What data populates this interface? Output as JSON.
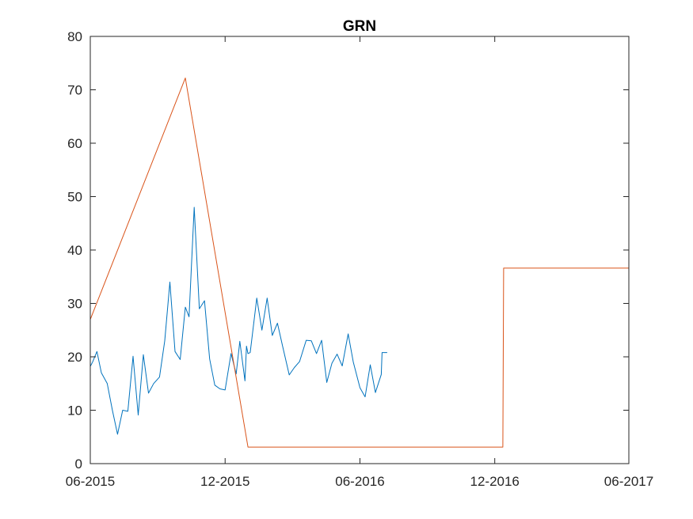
{
  "chart_data": {
    "type": "line",
    "title": "GRN",
    "xlabel": "",
    "ylabel": "",
    "xlim": [
      "2015-06-01",
      "2017-06-01"
    ],
    "ylim": [
      0,
      80
    ],
    "grid": false,
    "legend": "none",
    "x_ticks": [
      {
        "date": "2015-06-01",
        "label": "06-2015"
      },
      {
        "date": "2015-12-01",
        "label": "12-2015"
      },
      {
        "date": "2016-06-01",
        "label": "06-2016"
      },
      {
        "date": "2016-12-01",
        "label": "12-2016"
      },
      {
        "date": "2017-06-01",
        "label": "06-2017"
      }
    ],
    "y_ticks": [
      0,
      10,
      20,
      30,
      40,
      50,
      60,
      70,
      80
    ],
    "series": [
      {
        "color": "#0072BD",
        "points": [
          [
            "2015-06-01",
            18.2
          ],
          [
            "2015-06-04",
            19.0
          ],
          [
            "2015-06-10",
            21.0
          ],
          [
            "2015-06-16",
            17.0
          ],
          [
            "2015-06-24",
            15.0
          ],
          [
            "2015-07-01",
            10.0
          ],
          [
            "2015-07-08",
            5.5
          ],
          [
            "2015-07-15",
            10.0
          ],
          [
            "2015-07-22",
            9.8
          ],
          [
            "2015-07-29",
            20.1
          ],
          [
            "2015-08-05",
            9.1
          ],
          [
            "2015-08-12",
            20.4
          ],
          [
            "2015-08-19",
            13.2
          ],
          [
            "2015-08-26",
            15.0
          ],
          [
            "2015-09-03",
            16.2
          ],
          [
            "2015-09-10",
            23.0
          ],
          [
            "2015-09-17",
            34.0
          ],
          [
            "2015-09-24",
            21.0
          ],
          [
            "2015-10-01",
            19.5
          ],
          [
            "2015-10-08",
            29.3
          ],
          [
            "2015-10-13",
            27.5
          ],
          [
            "2015-10-20",
            48.0
          ],
          [
            "2015-10-27",
            29.0
          ],
          [
            "2015-11-03",
            30.5
          ],
          [
            "2015-11-10",
            19.6
          ],
          [
            "2015-11-17",
            14.7
          ],
          [
            "2015-11-24",
            14.0
          ],
          [
            "2015-12-01",
            13.8
          ],
          [
            "2015-12-09",
            20.6
          ],
          [
            "2015-12-16",
            16.8
          ],
          [
            "2015-12-21",
            22.9
          ],
          [
            "2015-12-28",
            15.5
          ],
          [
            "2015-12-30",
            22.0
          ],
          [
            "2016-01-01",
            20.6
          ],
          [
            "2016-01-04",
            20.8
          ],
          [
            "2016-01-06",
            23.0
          ],
          [
            "2016-01-13",
            31.0
          ],
          [
            "2016-01-20",
            25.0
          ],
          [
            "2016-01-27",
            31.0
          ],
          [
            "2016-02-03",
            24.0
          ],
          [
            "2016-02-10",
            26.3
          ],
          [
            "2016-02-17",
            22.0
          ],
          [
            "2016-02-26",
            16.6
          ],
          [
            "2016-03-04",
            18.0
          ],
          [
            "2016-03-11",
            19.1
          ],
          [
            "2016-03-20",
            23.1
          ],
          [
            "2016-03-27",
            23.0
          ],
          [
            "2016-04-03",
            20.6
          ],
          [
            "2016-04-10",
            23.1
          ],
          [
            "2016-04-17",
            15.2
          ],
          [
            "2016-04-24",
            18.8
          ],
          [
            "2016-05-01",
            20.5
          ],
          [
            "2016-05-08",
            18.3
          ],
          [
            "2016-05-16",
            24.3
          ],
          [
            "2016-05-23",
            19.0
          ],
          [
            "2016-06-01",
            14.2
          ],
          [
            "2016-06-08",
            12.5
          ],
          [
            "2016-06-15",
            18.5
          ],
          [
            "2016-06-22",
            13.3
          ],
          [
            "2016-06-30",
            16.7
          ],
          [
            "2016-07-01",
            20.8
          ],
          [
            "2016-07-08",
            20.8
          ]
        ]
      },
      {
        "color": "#D95319",
        "points": [
          [
            "2015-06-01",
            27.0
          ],
          [
            "2015-10-08",
            72.2
          ],
          [
            "2016-01-01",
            3.1
          ],
          [
            "2016-12-12",
            3.1
          ],
          [
            "2016-12-13",
            36.6
          ],
          [
            "2017-06-01",
            36.6
          ]
        ]
      }
    ]
  }
}
